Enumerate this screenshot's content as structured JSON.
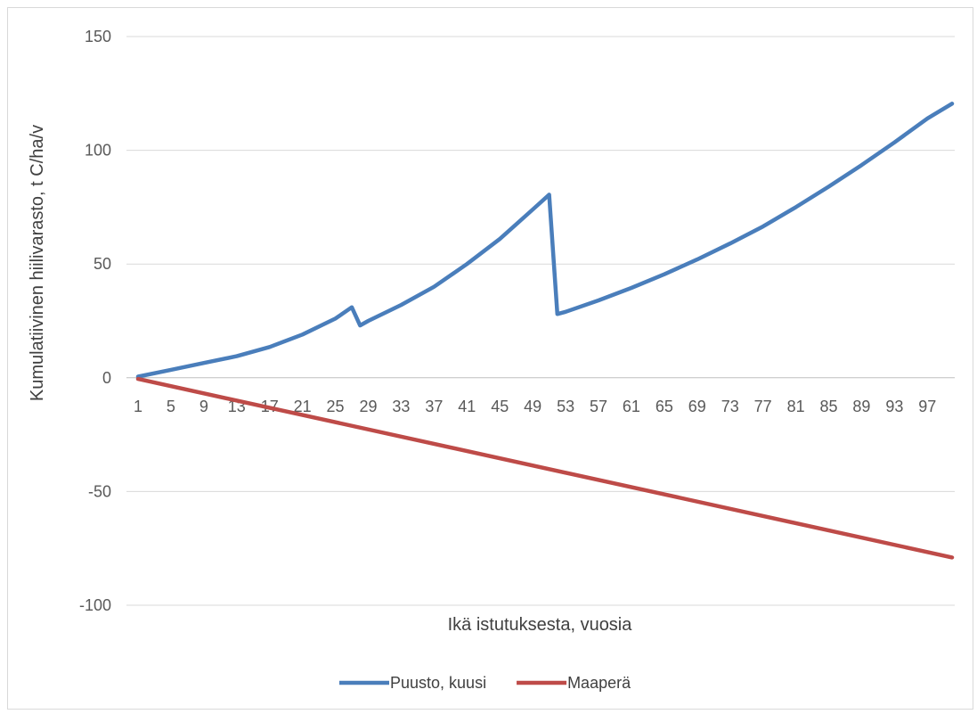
{
  "chart_data": {
    "type": "line",
    "xlabel": "Ikä istutuksesta, vuosia",
    "ylabel": "Kumulatiivinen hiilivarasto, t C/ha/v",
    "ylim": [
      -100,
      150
    ],
    "yticks": [
      -100,
      -50,
      0,
      50,
      100,
      150
    ],
    "xlim": [
      1,
      100
    ],
    "xticks": [
      1,
      5,
      9,
      13,
      17,
      21,
      25,
      29,
      33,
      37,
      41,
      45,
      49,
      53,
      57,
      61,
      65,
      69,
      73,
      77,
      81,
      85,
      89,
      93,
      97
    ],
    "grid": true,
    "legend": "bottom",
    "series": [
      {
        "name": "Puusto, kuusi",
        "color": "#4a7ebb",
        "x": [
          1,
          5,
          9,
          13,
          17,
          21,
          25,
          27,
          28,
          29,
          33,
          37,
          41,
          45,
          49,
          51,
          52,
          53,
          57,
          61,
          65,
          69,
          73,
          77,
          81,
          85,
          89,
          93,
          97,
          100
        ],
        "values": [
          0.5,
          3.5,
          6.5,
          9.5,
          13.5,
          19,
          26,
          31,
          23,
          25,
          32,
          40,
          50,
          61,
          74,
          80.5,
          28,
          29,
          34,
          39.5,
          45.5,
          52,
          59,
          66.5,
          75,
          84,
          93.5,
          103.5,
          114,
          120.5
        ]
      },
      {
        "name": "Maaperä",
        "color": "#be4b48",
        "x": [
          1,
          100
        ],
        "values": [
          -0.5,
          -79
        ]
      }
    ]
  }
}
